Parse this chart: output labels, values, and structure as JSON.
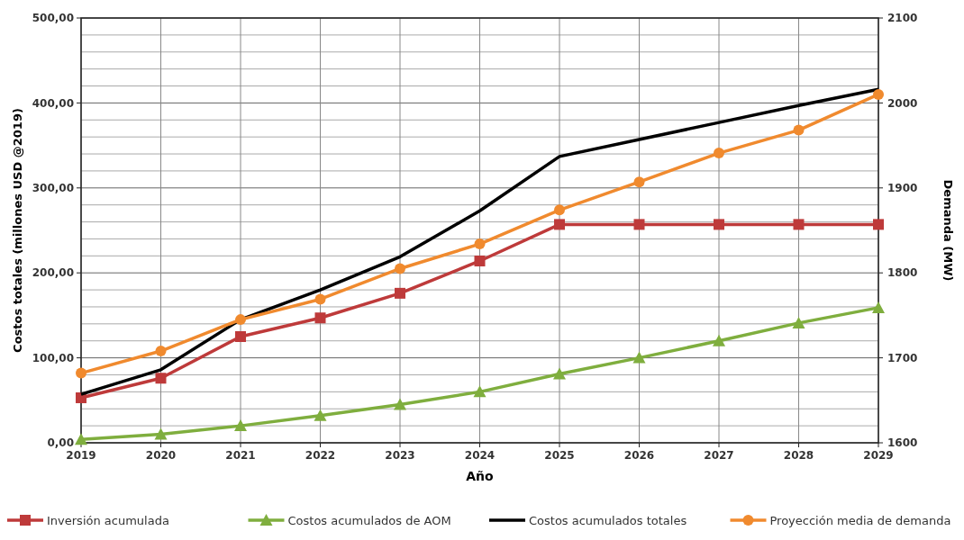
{
  "chart_data": {
    "type": "line",
    "xlabel": "Año",
    "ylabel": "Costos totales (millones USD @2019)",
    "y2label": "Demanda (MW)",
    "categories": [
      "2019",
      "2020",
      "2021",
      "2022",
      "2023",
      "2024",
      "2025",
      "2026",
      "2027",
      "2028",
      "2029"
    ],
    "ylim": [
      0,
      500
    ],
    "yticks": [
      {
        "value": 0,
        "label": "0,00"
      },
      {
        "value": 20,
        "label": null
      },
      {
        "value": 40,
        "label": null
      },
      {
        "value": 60,
        "label": null
      },
      {
        "value": 80,
        "label": null
      },
      {
        "value": 100,
        "label": "100,00"
      },
      {
        "value": 120,
        "label": null
      },
      {
        "value": 140,
        "label": null
      },
      {
        "value": 160,
        "label": null
      },
      {
        "value": 180,
        "label": null
      },
      {
        "value": 200,
        "label": "200,00"
      },
      {
        "value": 220,
        "label": null
      },
      {
        "value": 240,
        "label": null
      },
      {
        "value": 260,
        "label": null
      },
      {
        "value": 280,
        "label": null
      },
      {
        "value": 300,
        "label": "300,00"
      },
      {
        "value": 320,
        "label": null
      },
      {
        "value": 340,
        "label": null
      },
      {
        "value": 360,
        "label": null
      },
      {
        "value": 380,
        "label": null
      },
      {
        "value": 400,
        "label": "400,00"
      },
      {
        "value": 420,
        "label": null
      },
      {
        "value": 440,
        "label": null
      },
      {
        "value": 460,
        "label": null
      },
      {
        "value": 480,
        "label": null
      },
      {
        "value": 500,
        "label": "500,00"
      }
    ],
    "y2lim": [
      1600,
      2100
    ],
    "y2ticks": [
      1600,
      1700,
      1800,
      1900,
      2000,
      2100
    ],
    "grid": true,
    "legend": "bottom",
    "line_style": "solid",
    "series": [
      {
        "name": "Inversión acumulada",
        "color": "#be3a3a",
        "marker": "square",
        "values": [
          53,
          76,
          125,
          147,
          176,
          214,
          257,
          257,
          257,
          257,
          257
        ]
      },
      {
        "name": "Costos acumulados de AOM",
        "color": "#7fae3e",
        "marker": "triangle",
        "values": [
          4,
          10,
          20,
          32,
          45,
          60,
          81,
          100,
          120,
          141,
          159
        ]
      },
      {
        "name": "Costos acumulados totales",
        "color": "#000000",
        "marker": "none",
        "values": [
          57,
          86,
          145,
          180,
          219,
          273,
          337,
          357,
          377,
          397,
          416
        ]
      },
      {
        "name": "Proyección media de demanda",
        "color": "#f08a2e",
        "marker": "circle",
        "axis": "y2",
        "values": [
          1682,
          1708,
          1745,
          1769,
          1805,
          1834,
          1874,
          1907,
          1941,
          1968,
          2010
        ]
      }
    ]
  }
}
